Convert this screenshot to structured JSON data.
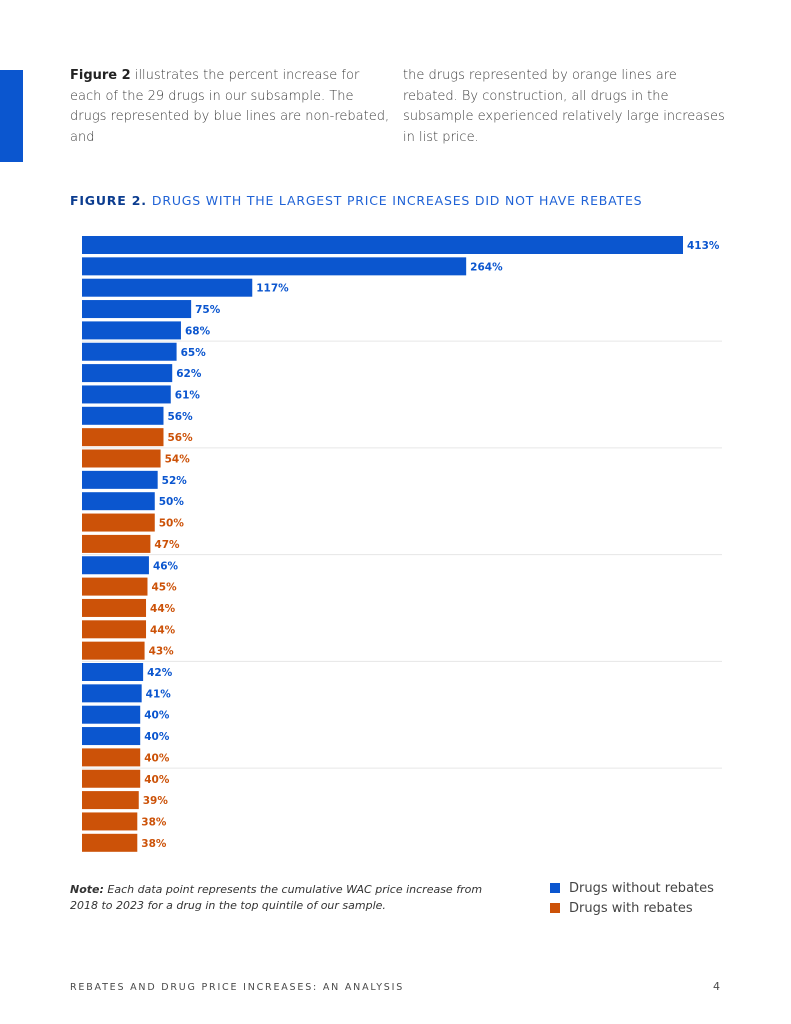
{
  "intro": {
    "left_bold": "Figure 2",
    "left_text": " illustrates the percent increase for each of the 29 drugs in our subsample. The drugs represented by blue lines are non-rebated, and",
    "right_text": "the drugs represented by orange lines are rebated. By construction, all drugs in the subsample experienced relatively large increases in list price."
  },
  "figure": {
    "number": "FIGURE 2.",
    "title": "DRUGS WITH THE LARGEST PRICE INCREASES DID NOT HAVE REBATES"
  },
  "chart_data": {
    "type": "bar",
    "orientation": "horizontal",
    "title": "DRUGS WITH THE LARGEST PRICE INCREASES DID NOT HAVE REBATES",
    "values": [
      413,
      264,
      117,
      75,
      68,
      65,
      62,
      61,
      56,
      56,
      54,
      52,
      50,
      50,
      47,
      46,
      45,
      44,
      44,
      43,
      42,
      41,
      40,
      40,
      40,
      40,
      39,
      38,
      38
    ],
    "labels": [
      "413%",
      "264%",
      "117%",
      "75%",
      "68%",
      "65%",
      "62%",
      "61%",
      "56%",
      "56%",
      "54%",
      "52%",
      "50%",
      "50%",
      "47%",
      "46%",
      "45%",
      "44%",
      "44%",
      "43%",
      "42%",
      "41%",
      "40%",
      "40%",
      "40%",
      "40%",
      "39%",
      "38%",
      "38%"
    ],
    "rebated": [
      false,
      false,
      false,
      false,
      false,
      false,
      false,
      false,
      false,
      true,
      true,
      false,
      false,
      true,
      true,
      false,
      true,
      true,
      true,
      true,
      false,
      false,
      false,
      false,
      true,
      true,
      true,
      true,
      true
    ],
    "xlim": [
      0,
      413
    ],
    "grid": true,
    "legend_position": "bottom-right",
    "colors": {
      "without_rebates": "#0b56cf",
      "with_rebates": "#cc5208"
    }
  },
  "legend": {
    "without": "Drugs without rebates",
    "with": "Drugs with rebates"
  },
  "note": {
    "label": "Note:",
    "text": " Each data point represents the cumulative WAC price increase from 2018 to 2023 for a drug in the top quintile of our sample."
  },
  "footer": {
    "text": "REBATES AND DRUG PRICE INCREASES: AN ANALYSIS",
    "page": "4"
  }
}
